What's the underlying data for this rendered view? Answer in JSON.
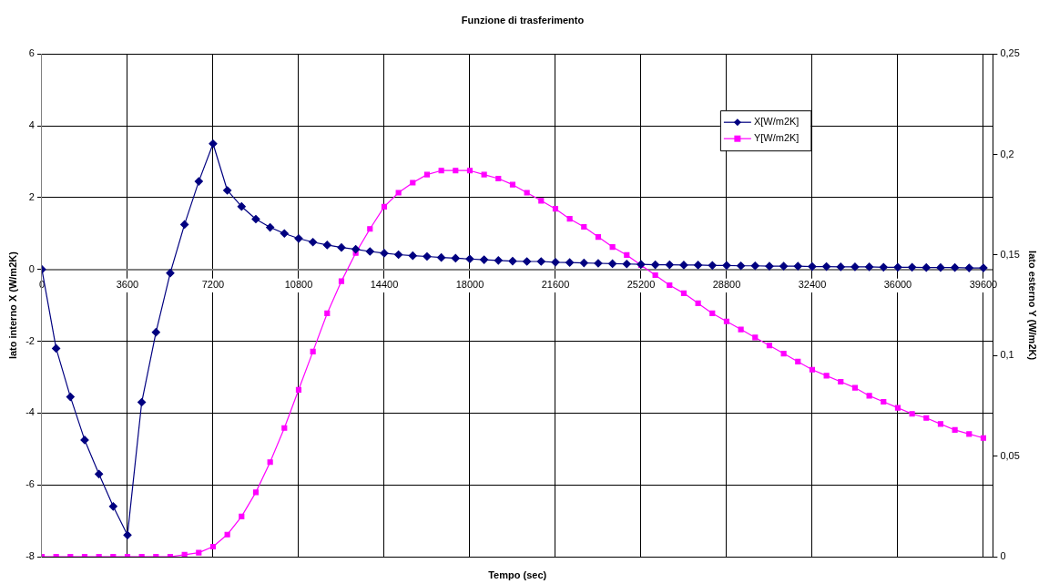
{
  "chart_data": {
    "type": "line",
    "title": "Funzione di trasferimento",
    "xlabel": "Tempo (sec)",
    "ylabel": "lato interno X (W/m2K)",
    "y2label": "lato esterno Y (W/m2K)",
    "x": [
      0,
      600,
      1200,
      1800,
      2400,
      3000,
      3600,
      4200,
      4800,
      5400,
      6000,
      6600,
      7200,
      7800,
      8400,
      9000,
      9600,
      10200,
      10800,
      11400,
      12000,
      12600,
      13200,
      13800,
      14400,
      15000,
      15600,
      16200,
      16800,
      17400,
      18000,
      18600,
      19200,
      19800,
      20400,
      21000,
      21600,
      22200,
      22800,
      23400,
      24000,
      24600,
      25200,
      25800,
      26400,
      27000,
      27600,
      28200,
      28800,
      29400,
      30000,
      30600,
      31200,
      31800,
      32400,
      33000,
      33600,
      34200,
      34800,
      35400,
      36000,
      36600,
      37200,
      37800,
      38400,
      39000,
      39600
    ],
    "series": [
      {
        "name": "X[W/m2K]",
        "color": "#000080",
        "marker": "diamond",
        "values": [
          0,
          -2.2,
          -3.55,
          -4.75,
          -5.7,
          -6.6,
          -7.4,
          -3.7,
          -1.75,
          -0.1,
          1.25,
          2.45,
          3.5,
          2.2,
          1.75,
          1.4,
          1.17,
          1.0,
          0.86,
          0.76,
          0.68,
          0.61,
          0.56,
          0.5,
          0.45,
          0.41,
          0.38,
          0.36,
          0.33,
          0.31,
          0.29,
          0.27,
          0.25,
          0.23,
          0.22,
          0.22,
          0.2,
          0.19,
          0.18,
          0.17,
          0.16,
          0.15,
          0.14,
          0.13,
          0.13,
          0.12,
          0.12,
          0.11,
          0.11,
          0.1,
          0.1,
          0.09,
          0.09,
          0.09,
          0.08,
          0.08,
          0.07,
          0.07,
          0.07,
          0.06,
          0.06,
          0.06,
          0.05,
          0.05,
          0.05,
          0.04,
          0.04
        ]
      },
      {
        "name": "Y[W/m2K]",
        "color": "#ff00ff",
        "marker": "square",
        "axis": "y2",
        "values": [
          0,
          0,
          0,
          0,
          0,
          0,
          0,
          0,
          0,
          0,
          0.001,
          0.002,
          0.005,
          0.011,
          0.02,
          0.032,
          0.047,
          0.064,
          0.083,
          0.102,
          0.121,
          0.137,
          0.151,
          0.163,
          0.174,
          0.181,
          0.186,
          0.19,
          0.192,
          0.192,
          0.192,
          0.19,
          0.188,
          0.185,
          0.181,
          0.177,
          0.173,
          0.168,
          0.164,
          0.159,
          0.154,
          0.15,
          0.145,
          0.14,
          0.135,
          0.131,
          0.126,
          0.121,
          0.117,
          0.113,
          0.109,
          0.105,
          0.101,
          0.097,
          0.093,
          0.09,
          0.087,
          0.084,
          0.08,
          0.077,
          0.074,
          0.071,
          0.069,
          0.066,
          0.063,
          0.061,
          0.059
        ]
      }
    ],
    "xlim": [
      0,
      40000
    ],
    "xticks": [
      0,
      3600,
      7200,
      10800,
      14400,
      18000,
      21600,
      25200,
      28800,
      32400,
      36000,
      39600
    ],
    "ylim": [
      -8,
      6
    ],
    "yticks": [
      -8,
      -6,
      -4,
      -2,
      0,
      2,
      4,
      6
    ],
    "y2lim": [
      0,
      0.25
    ],
    "y2ticks": [
      {
        "value": 0,
        "label": "0"
      },
      {
        "value": 0.05,
        "label": "0,05"
      },
      {
        "value": 0.1,
        "label": "0,1"
      },
      {
        "value": 0.15,
        "label": "0,15"
      },
      {
        "value": 0.2,
        "label": "0,2"
      },
      {
        "value": 0.25,
        "label": "0,25"
      }
    ],
    "grid": true,
    "legend": "top right",
    "line_style": "solid"
  }
}
